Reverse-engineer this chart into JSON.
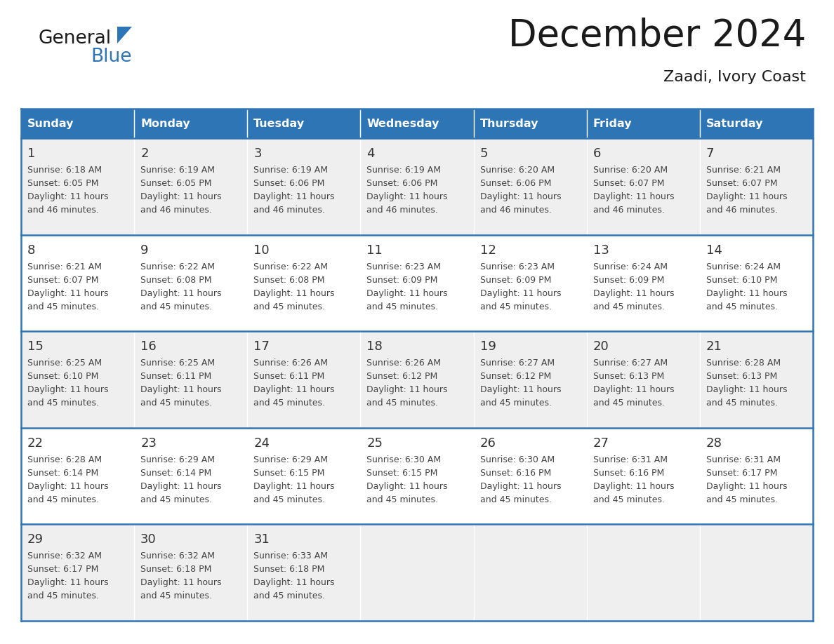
{
  "title": "December 2024",
  "subtitle": "Zaadi, Ivory Coast",
  "header_bg": "#2E75B6",
  "header_text_color": "#FFFFFF",
  "day_names": [
    "Sunday",
    "Monday",
    "Tuesday",
    "Wednesday",
    "Thursday",
    "Friday",
    "Saturday"
  ],
  "cell_bg_odd": "#EFEFEF",
  "cell_bg_even": "#FFFFFF",
  "grid_line_color": "#2E75B6",
  "text_color": "#444444",
  "logo_general_color": "#1a1a1a",
  "logo_blue_color": "#2E75B6",
  "days": [
    {
      "date": 1,
      "dow": 0,
      "sunrise": "6:18 AM",
      "sunset": "6:05 PM",
      "daylight_min": "46"
    },
    {
      "date": 2,
      "dow": 1,
      "sunrise": "6:19 AM",
      "sunset": "6:05 PM",
      "daylight_min": "46"
    },
    {
      "date": 3,
      "dow": 2,
      "sunrise": "6:19 AM",
      "sunset": "6:06 PM",
      "daylight_min": "46"
    },
    {
      "date": 4,
      "dow": 3,
      "sunrise": "6:19 AM",
      "sunset": "6:06 PM",
      "daylight_min": "46"
    },
    {
      "date": 5,
      "dow": 4,
      "sunrise": "6:20 AM",
      "sunset": "6:06 PM",
      "daylight_min": "46"
    },
    {
      "date": 6,
      "dow": 5,
      "sunrise": "6:20 AM",
      "sunset": "6:07 PM",
      "daylight_min": "46"
    },
    {
      "date": 7,
      "dow": 6,
      "sunrise": "6:21 AM",
      "sunset": "6:07 PM",
      "daylight_min": "46"
    },
    {
      "date": 8,
      "dow": 0,
      "sunrise": "6:21 AM",
      "sunset": "6:07 PM",
      "daylight_min": "45"
    },
    {
      "date": 9,
      "dow": 1,
      "sunrise": "6:22 AM",
      "sunset": "6:08 PM",
      "daylight_min": "45"
    },
    {
      "date": 10,
      "dow": 2,
      "sunrise": "6:22 AM",
      "sunset": "6:08 PM",
      "daylight_min": "45"
    },
    {
      "date": 11,
      "dow": 3,
      "sunrise": "6:23 AM",
      "sunset": "6:09 PM",
      "daylight_min": "45"
    },
    {
      "date": 12,
      "dow": 4,
      "sunrise": "6:23 AM",
      "sunset": "6:09 PM",
      "daylight_min": "45"
    },
    {
      "date": 13,
      "dow": 5,
      "sunrise": "6:24 AM",
      "sunset": "6:09 PM",
      "daylight_min": "45"
    },
    {
      "date": 14,
      "dow": 6,
      "sunrise": "6:24 AM",
      "sunset": "6:10 PM",
      "daylight_min": "45"
    },
    {
      "date": 15,
      "dow": 0,
      "sunrise": "6:25 AM",
      "sunset": "6:10 PM",
      "daylight_min": "45"
    },
    {
      "date": 16,
      "dow": 1,
      "sunrise": "6:25 AM",
      "sunset": "6:11 PM",
      "daylight_min": "45"
    },
    {
      "date": 17,
      "dow": 2,
      "sunrise": "6:26 AM",
      "sunset": "6:11 PM",
      "daylight_min": "45"
    },
    {
      "date": 18,
      "dow": 3,
      "sunrise": "6:26 AM",
      "sunset": "6:12 PM",
      "daylight_min": "45"
    },
    {
      "date": 19,
      "dow": 4,
      "sunrise": "6:27 AM",
      "sunset": "6:12 PM",
      "daylight_min": "45"
    },
    {
      "date": 20,
      "dow": 5,
      "sunrise": "6:27 AM",
      "sunset": "6:13 PM",
      "daylight_min": "45"
    },
    {
      "date": 21,
      "dow": 6,
      "sunrise": "6:28 AM",
      "sunset": "6:13 PM",
      "daylight_min": "45"
    },
    {
      "date": 22,
      "dow": 0,
      "sunrise": "6:28 AM",
      "sunset": "6:14 PM",
      "daylight_min": "45"
    },
    {
      "date": 23,
      "dow": 1,
      "sunrise": "6:29 AM",
      "sunset": "6:14 PM",
      "daylight_min": "45"
    },
    {
      "date": 24,
      "dow": 2,
      "sunrise": "6:29 AM",
      "sunset": "6:15 PM",
      "daylight_min": "45"
    },
    {
      "date": 25,
      "dow": 3,
      "sunrise": "6:30 AM",
      "sunset": "6:15 PM",
      "daylight_min": "45"
    },
    {
      "date": 26,
      "dow": 4,
      "sunrise": "6:30 AM",
      "sunset": "6:16 PM",
      "daylight_min": "45"
    },
    {
      "date": 27,
      "dow": 5,
      "sunrise": "6:31 AM",
      "sunset": "6:16 PM",
      "daylight_min": "45"
    },
    {
      "date": 28,
      "dow": 6,
      "sunrise": "6:31 AM",
      "sunset": "6:17 PM",
      "daylight_min": "45"
    },
    {
      "date": 29,
      "dow": 0,
      "sunrise": "6:32 AM",
      "sunset": "6:17 PM",
      "daylight_min": "45"
    },
    {
      "date": 30,
      "dow": 1,
      "sunrise": "6:32 AM",
      "sunset": "6:18 PM",
      "daylight_min": "45"
    },
    {
      "date": 31,
      "dow": 2,
      "sunrise": "6:33 AM",
      "sunset": "6:18 PM",
      "daylight_min": "45"
    }
  ]
}
